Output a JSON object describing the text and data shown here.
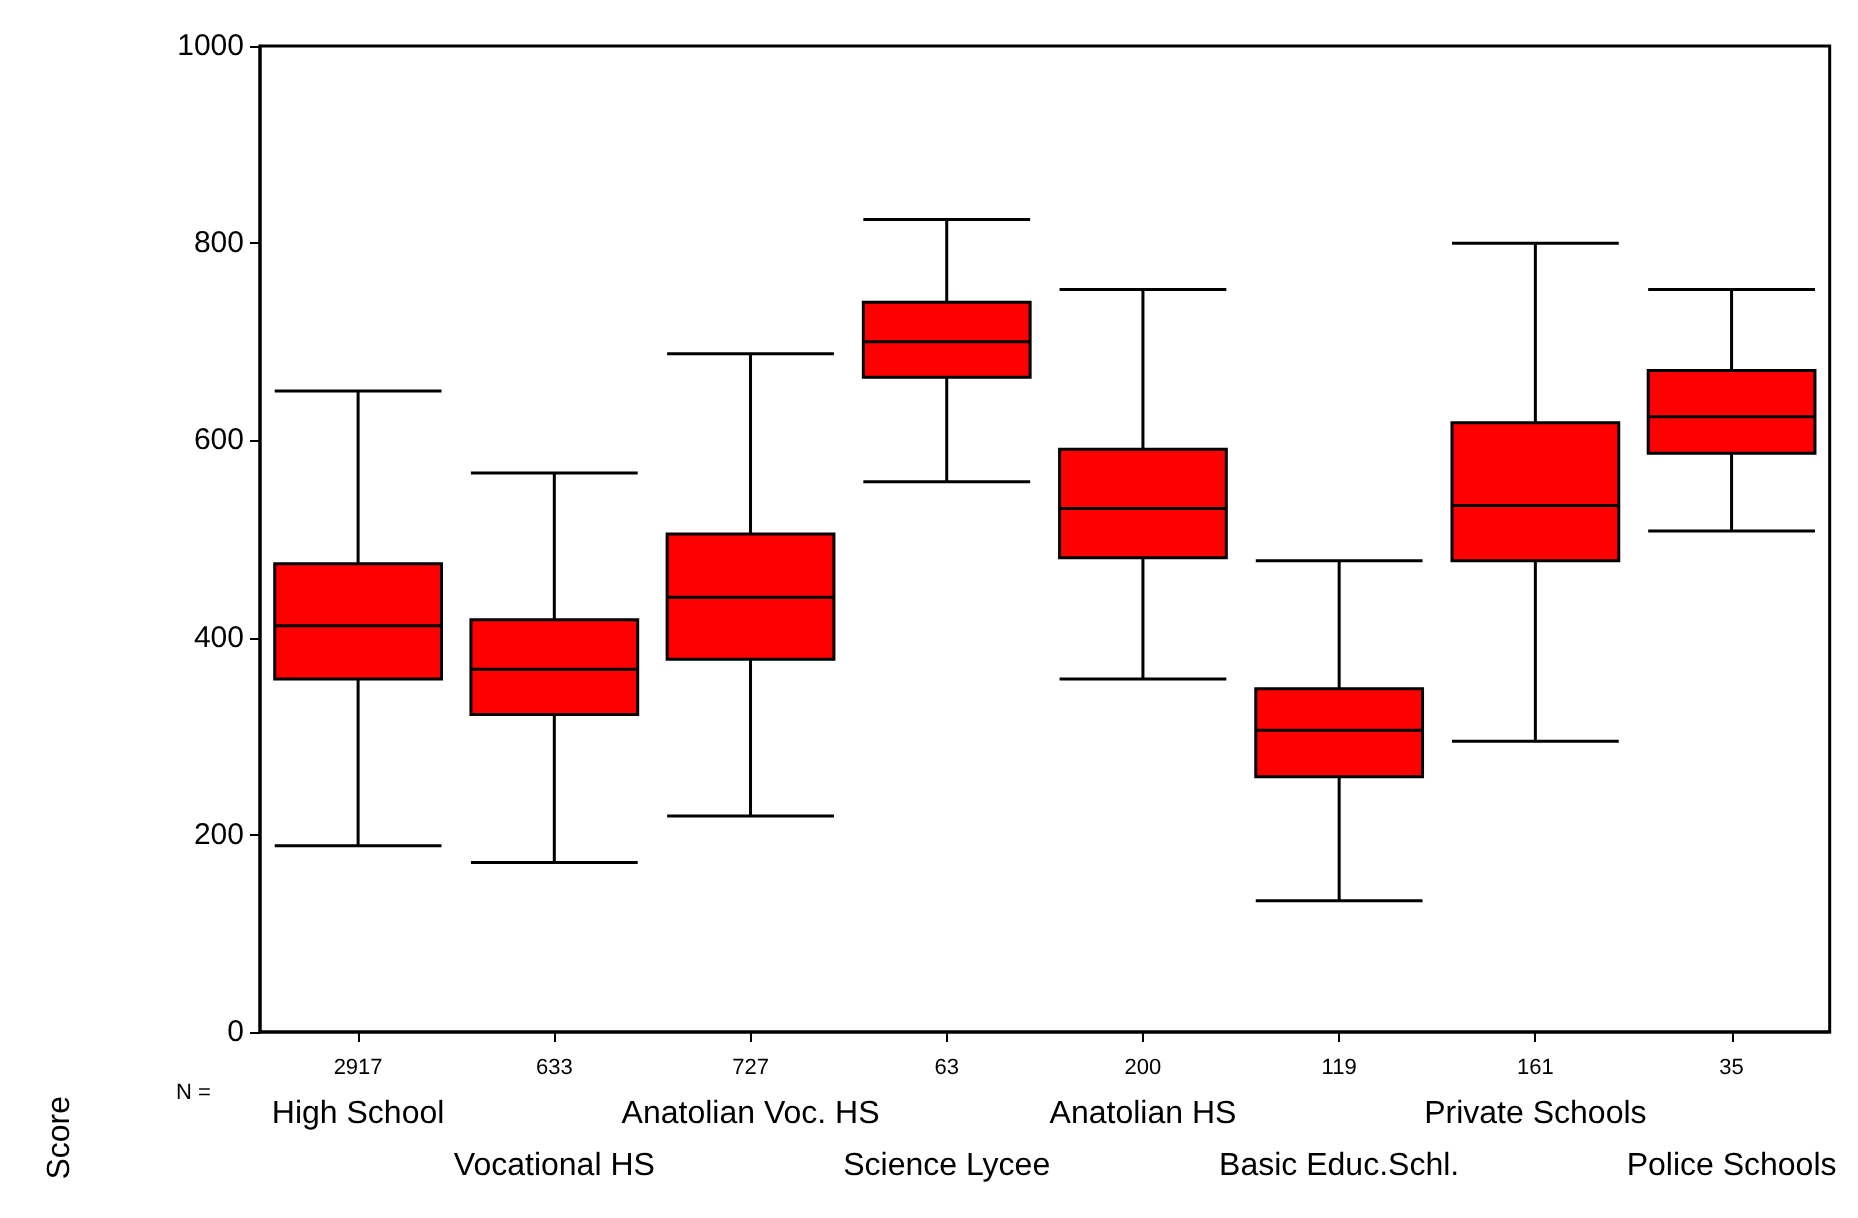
{
  "chart_data": {
    "type": "box",
    "ylabel": "Score",
    "categories": [
      "High School",
      "Vocational HS",
      "Anatolian Voc. HS",
      "Science Lycee",
      "Anatolian HS",
      "Basic Educ.Schl.",
      "Private Schools",
      "Police Schools"
    ],
    "boxes": [
      {
        "low": 189,
        "q1": 358,
        "median": 412,
        "q3": 475,
        "high": 650
      },
      {
        "low": 172,
        "q1": 322,
        "median": 368,
        "q3": 418,
        "high": 567
      },
      {
        "low": 219,
        "q1": 378,
        "median": 441,
        "q3": 505,
        "high": 688
      },
      {
        "low": 558,
        "q1": 664,
        "median": 700,
        "q3": 740,
        "high": 824
      },
      {
        "low": 358,
        "q1": 481,
        "median": 531,
        "q3": 591,
        "high": 753
      },
      {
        "low": 133,
        "q1": 259,
        "median": 306,
        "q3": 348,
        "high": 478
      },
      {
        "low": 295,
        "q1": 478,
        "median": 534,
        "q3": 618,
        "high": 800
      },
      {
        "low": 508,
        "q1": 587,
        "median": 624,
        "q3": 671,
        "high": 753
      }
    ],
    "color": "#ff0000",
    "ylim": [
      0,
      1000
    ],
    "yticks": [
      0,
      200,
      400,
      600,
      800,
      1000
    ],
    "grid": false,
    "annotations": [
      "N =",
      {
        "text": "2917",
        "x": "High School"
      },
      {
        "text": "633",
        "x": "Vocational HS"
      },
      {
        "text": "727",
        "x": "Anatolian Voc. HS"
      },
      {
        "text": "63",
        "x": "Science Lycee"
      },
      {
        "text": "200",
        "x": "Anatolian HS"
      },
      {
        "text": "119",
        "x": "Basic Educ.Schl."
      },
      {
        "text": "161",
        "x": "Private Schools"
      },
      {
        "text": "35",
        "x": "Police Schools"
      }
    ]
  }
}
